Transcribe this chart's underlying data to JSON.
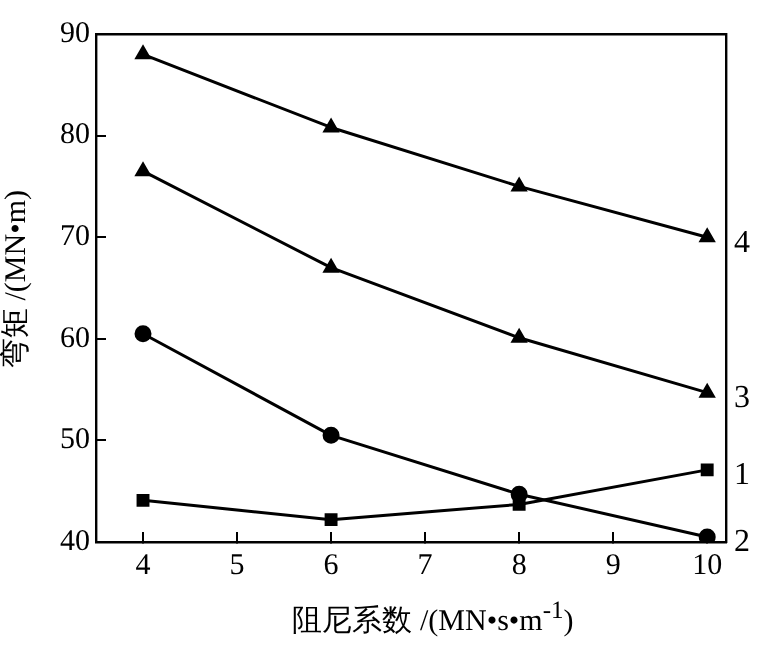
{
  "chart_data": {
    "type": "line",
    "xlabel": "阻尼系数 /(MN•s•m$^{-1}$)",
    "ylabel": "弯矩 /(MN•m)",
    "x": [
      4,
      6,
      8,
      10
    ],
    "series": [
      {
        "name": "1",
        "color": "#000000",
        "marker": "square",
        "values": [
          44.1,
          42.2,
          43.7,
          47.1
        ]
      },
      {
        "name": "2",
        "color": "#000000",
        "marker": "circle",
        "values": [
          60.5,
          50.5,
          44.7,
          40.5
        ]
      },
      {
        "name": "3",
        "color": "#000000",
        "marker": "triangle",
        "values": [
          76.5,
          67.0,
          60.1,
          54.7
        ]
      },
      {
        "name": "4",
        "color": "#000000",
        "marker": "triangle",
        "values": [
          88.0,
          80.8,
          75.0,
          70.0
        ]
      }
    ],
    "xlim": [
      3.5,
      10.2
    ],
    "xticks": [
      4,
      5,
      6,
      7,
      8,
      9,
      10
    ],
    "ylim": [
      40,
      90
    ],
    "yticks": [
      40,
      50,
      60,
      70,
      80,
      90
    ],
    "grid": false,
    "legend": false,
    "line_style": "solid"
  }
}
